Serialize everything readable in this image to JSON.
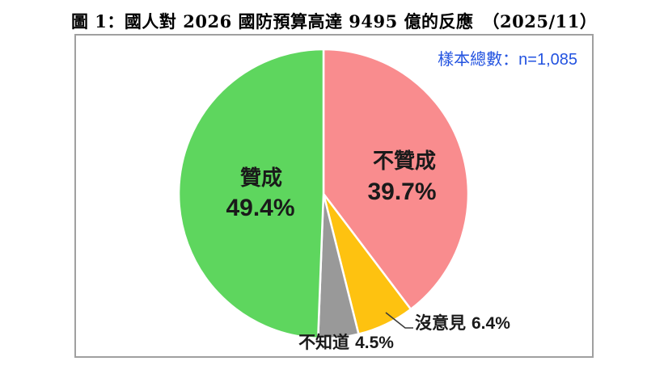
{
  "title": "圖 1：國人對 2026 國防預算高達 9495 億的反應　（2025/11）",
  "sample_note": "樣本總數：n=1,085",
  "colors": {
    "sample_note_text": "#2353E0",
    "chart_border": "#A0A0A0",
    "label_text": "#1A1A1A",
    "slice_stroke": "#FFFFFF",
    "leader_line": "#3A3A3A"
  },
  "chart_data": {
    "type": "pie",
    "title": "圖 1：國人對 2026 國防預算高達 9495 億的反應（2025/11）",
    "sample_size_label": "樣本總數：n=1,085",
    "sample_size": 1085,
    "start_angle_deg": 0,
    "direction": "clockwise",
    "legend": "none",
    "categories": [
      "不贊成",
      "沒意見",
      "不知道",
      "贊成"
    ],
    "values": [
      39.7,
      6.4,
      4.5,
      49.4
    ],
    "slices": [
      {
        "id": "disapprove",
        "label": "不贊成",
        "value": 39.7,
        "pct_label": "39.7%",
        "color": "#F98C8E",
        "label_placement": "inside"
      },
      {
        "id": "no-opinion",
        "label": "沒意見",
        "value": 6.4,
        "pct_label": "6.4%",
        "color": "#FEC210",
        "label_placement": "outside-callout"
      },
      {
        "id": "dont-know",
        "label": "不知道",
        "value": 4.5,
        "pct_label": "4.5%",
        "color": "#999999",
        "label_placement": "outside-below"
      },
      {
        "id": "approve",
        "label": "贊成",
        "value": 49.4,
        "pct_label": "49.4%",
        "color": "#5ED65E",
        "label_placement": "inside"
      }
    ]
  }
}
